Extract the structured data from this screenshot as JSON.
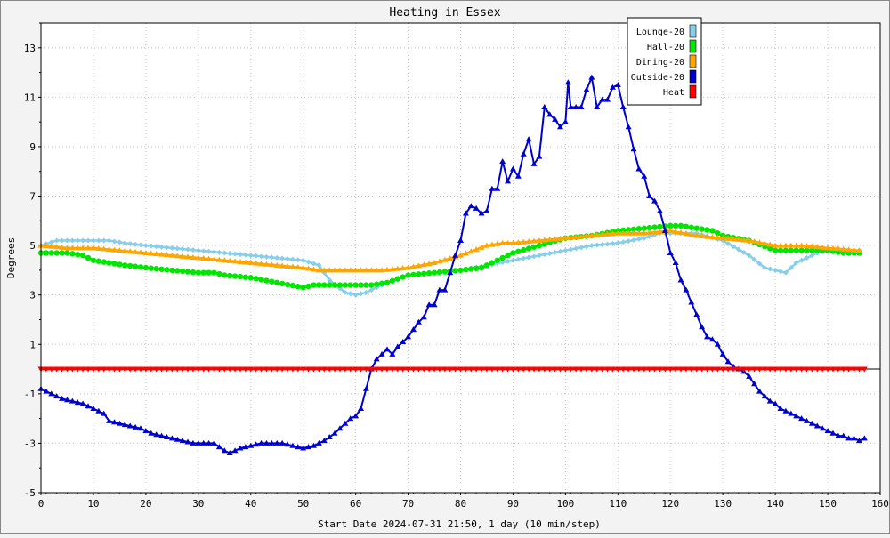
{
  "chart_data": {
    "type": "line",
    "title": "Heating in Essex",
    "xlabel": "Start Date 2024-07-31 21:50, 1 day (10 min/step)",
    "ylabel": "Degrees",
    "xlim": [
      0,
      160
    ],
    "ylim": [
      -5,
      14
    ],
    "x_ticks": [
      0,
      10,
      20,
      30,
      40,
      50,
      60,
      70,
      80,
      90,
      100,
      110,
      120,
      130,
      140,
      150,
      160
    ],
    "y_ticks": [
      -5,
      -3,
      -1,
      1,
      3,
      5,
      7,
      9,
      11,
      13
    ],
    "grid": true,
    "legend_position": "top-right",
    "series": [
      {
        "name": "Lounge-20",
        "color": "#87ceeb",
        "marker": "diamond",
        "points": [
          [
            0,
            5.0
          ],
          [
            3,
            5.2
          ],
          [
            6,
            5.2
          ],
          [
            10,
            5.2
          ],
          [
            13,
            5.2
          ],
          [
            16,
            5.1
          ],
          [
            20,
            5.0
          ],
          [
            25,
            4.9
          ],
          [
            30,
            4.8
          ],
          [
            35,
            4.7
          ],
          [
            40,
            4.6
          ],
          [
            45,
            4.5
          ],
          [
            50,
            4.4
          ],
          [
            53,
            4.2
          ],
          [
            55,
            3.6
          ],
          [
            58,
            3.1
          ],
          [
            60,
            3.0
          ],
          [
            62,
            3.1
          ],
          [
            65,
            3.4
          ],
          [
            70,
            3.8
          ],
          [
            75,
            3.9
          ],
          [
            80,
            4.0
          ],
          [
            85,
            4.2
          ],
          [
            90,
            4.4
          ],
          [
            95,
            4.6
          ],
          [
            100,
            4.8
          ],
          [
            105,
            5.0
          ],
          [
            110,
            5.1
          ],
          [
            115,
            5.3
          ],
          [
            118,
            5.5
          ],
          [
            120,
            5.5
          ],
          [
            125,
            5.5
          ],
          [
            130,
            5.2
          ],
          [
            135,
            4.6
          ],
          [
            138,
            4.1
          ],
          [
            140,
            4.0
          ],
          [
            142,
            3.9
          ],
          [
            144,
            4.3
          ],
          [
            146,
            4.5
          ],
          [
            148,
            4.7
          ],
          [
            150,
            4.8
          ],
          [
            152,
            4.8
          ],
          [
            154,
            4.8
          ],
          [
            156,
            4.8
          ]
        ]
      },
      {
        "name": "Hall-20",
        "color": "#00e600",
        "marker": "circle",
        "points": [
          [
            0,
            4.7
          ],
          [
            5,
            4.7
          ],
          [
            8,
            4.6
          ],
          [
            10,
            4.4
          ],
          [
            13,
            4.3
          ],
          [
            16,
            4.2
          ],
          [
            20,
            4.1
          ],
          [
            25,
            4.0
          ],
          [
            30,
            3.9
          ],
          [
            33,
            3.9
          ],
          [
            35,
            3.8
          ],
          [
            40,
            3.7
          ],
          [
            45,
            3.5
          ],
          [
            50,
            3.3
          ],
          [
            52,
            3.4
          ],
          [
            55,
            3.4
          ],
          [
            60,
            3.4
          ],
          [
            63,
            3.4
          ],
          [
            66,
            3.5
          ],
          [
            70,
            3.8
          ],
          [
            75,
            3.9
          ],
          [
            80,
            4.0
          ],
          [
            84,
            4.1
          ],
          [
            86,
            4.3
          ],
          [
            90,
            4.7
          ],
          [
            95,
            5.0
          ],
          [
            100,
            5.3
          ],
          [
            105,
            5.4
          ],
          [
            110,
            5.6
          ],
          [
            115,
            5.7
          ],
          [
            120,
            5.8
          ],
          [
            122,
            5.8
          ],
          [
            125,
            5.7
          ],
          [
            128,
            5.6
          ],
          [
            130,
            5.4
          ],
          [
            135,
            5.2
          ],
          [
            140,
            4.8
          ],
          [
            145,
            4.8
          ],
          [
            150,
            4.8
          ],
          [
            153,
            4.7
          ],
          [
            156,
            4.7
          ]
        ]
      },
      {
        "name": "Dining-20",
        "color": "#ffa500",
        "marker": "triangle",
        "points": [
          [
            0,
            5.0
          ],
          [
            5,
            4.9
          ],
          [
            10,
            4.9
          ],
          [
            15,
            4.8
          ],
          [
            20,
            4.7
          ],
          [
            25,
            4.6
          ],
          [
            30,
            4.5
          ],
          [
            35,
            4.4
          ],
          [
            40,
            4.3
          ],
          [
            45,
            4.2
          ],
          [
            50,
            4.1
          ],
          [
            53,
            4.0
          ],
          [
            55,
            4.0
          ],
          [
            60,
            4.0
          ],
          [
            65,
            4.0
          ],
          [
            70,
            4.1
          ],
          [
            75,
            4.3
          ],
          [
            80,
            4.6
          ],
          [
            85,
            5.0
          ],
          [
            88,
            5.1
          ],
          [
            90,
            5.1
          ],
          [
            95,
            5.2
          ],
          [
            100,
            5.3
          ],
          [
            105,
            5.4
          ],
          [
            110,
            5.5
          ],
          [
            115,
            5.5
          ],
          [
            120,
            5.6
          ],
          [
            125,
            5.4
          ],
          [
            130,
            5.3
          ],
          [
            135,
            5.2
          ],
          [
            140,
            5.0
          ],
          [
            145,
            5.0
          ],
          [
            150,
            4.9
          ],
          [
            156,
            4.8
          ]
        ]
      },
      {
        "name": "Outside-20",
        "color": "#0000cd",
        "marker": "triangle",
        "points": [
          [
            0,
            -0.8
          ],
          [
            2,
            -1.0
          ],
          [
            4,
            -1.2
          ],
          [
            6,
            -1.3
          ],
          [
            8,
            -1.4
          ],
          [
            10,
            -1.6
          ],
          [
            12,
            -1.8
          ],
          [
            13,
            -2.1
          ],
          [
            15,
            -2.2
          ],
          [
            17,
            -2.3
          ],
          [
            19,
            -2.4
          ],
          [
            21,
            -2.6
          ],
          [
            23,
            -2.7
          ],
          [
            25,
            -2.8
          ],
          [
            27,
            -2.9
          ],
          [
            29,
            -3.0
          ],
          [
            31,
            -3.0
          ],
          [
            33,
            -3.0
          ],
          [
            35,
            -3.3
          ],
          [
            36,
            -3.4
          ],
          [
            37,
            -3.3
          ],
          [
            38,
            -3.2
          ],
          [
            40,
            -3.1
          ],
          [
            42,
            -3.0
          ],
          [
            44,
            -3.0
          ],
          [
            46,
            -3.0
          ],
          [
            48,
            -3.1
          ],
          [
            50,
            -3.2
          ],
          [
            52,
            -3.1
          ],
          [
            54,
            -2.9
          ],
          [
            56,
            -2.6
          ],
          [
            58,
            -2.2
          ],
          [
            59,
            -2.0
          ],
          [
            60,
            -1.9
          ],
          [
            61,
            -1.6
          ],
          [
            62,
            -0.8
          ],
          [
            63,
            0.0
          ],
          [
            64,
            0.4
          ],
          [
            65,
            0.6
          ],
          [
            66,
            0.8
          ],
          [
            67,
            0.6
          ],
          [
            68,
            0.9
          ],
          [
            69,
            1.1
          ],
          [
            70,
            1.3
          ],
          [
            71,
            1.6
          ],
          [
            72,
            1.9
          ],
          [
            73,
            2.1
          ],
          [
            74,
            2.6
          ],
          [
            75,
            2.6
          ],
          [
            76,
            3.2
          ],
          [
            77,
            3.2
          ],
          [
            78,
            3.9
          ],
          [
            79,
            4.6
          ],
          [
            80,
            5.2
          ],
          [
            81,
            6.3
          ],
          [
            82,
            6.6
          ],
          [
            83,
            6.5
          ],
          [
            84,
            6.3
          ],
          [
            85,
            6.4
          ],
          [
            86,
            7.3
          ],
          [
            87,
            7.3
          ],
          [
            88,
            8.4
          ],
          [
            89,
            7.6
          ],
          [
            90,
            8.1
          ],
          [
            91,
            7.8
          ],
          [
            92,
            8.7
          ],
          [
            93,
            9.3
          ],
          [
            94,
            8.3
          ],
          [
            95,
            8.6
          ],
          [
            96,
            10.6
          ],
          [
            97,
            10.3
          ],
          [
            98,
            10.1
          ],
          [
            99,
            9.8
          ],
          [
            100,
            10.0
          ],
          [
            100.5,
            11.6
          ],
          [
            101,
            10.6
          ],
          [
            102,
            10.6
          ],
          [
            103,
            10.6
          ],
          [
            104,
            11.3
          ],
          [
            105,
            11.8
          ],
          [
            106,
            10.6
          ],
          [
            107,
            10.9
          ],
          [
            108,
            10.9
          ],
          [
            109,
            11.4
          ],
          [
            110,
            11.5
          ],
          [
            111,
            10.6
          ],
          [
            112,
            9.8
          ],
          [
            113,
            8.9
          ],
          [
            114,
            8.1
          ],
          [
            115,
            7.8
          ],
          [
            116,
            7.0
          ],
          [
            117,
            6.8
          ],
          [
            118,
            6.4
          ],
          [
            119,
            5.6
          ],
          [
            120,
            4.7
          ],
          [
            121,
            4.3
          ],
          [
            122,
            3.6
          ],
          [
            123,
            3.2
          ],
          [
            124,
            2.7
          ],
          [
            125,
            2.2
          ],
          [
            126,
            1.7
          ],
          [
            127,
            1.3
          ],
          [
            128,
            1.2
          ],
          [
            129,
            1.0
          ],
          [
            130,
            0.6
          ],
          [
            131,
            0.3
          ],
          [
            132,
            0.1
          ],
          [
            133,
            0.0
          ],
          [
            134,
            -0.1
          ],
          [
            135,
            -0.3
          ],
          [
            136,
            -0.6
          ],
          [
            137,
            -0.9
          ],
          [
            138,
            -1.1
          ],
          [
            139,
            -1.3
          ],
          [
            140,
            -1.4
          ],
          [
            141,
            -1.6
          ],
          [
            142,
            -1.7
          ],
          [
            143,
            -1.8
          ],
          [
            144,
            -1.9
          ],
          [
            145,
            -2.0
          ],
          [
            146,
            -2.1
          ],
          [
            147,
            -2.2
          ],
          [
            148,
            -2.3
          ],
          [
            149,
            -2.4
          ],
          [
            150,
            -2.5
          ],
          [
            151,
            -2.6
          ],
          [
            152,
            -2.7
          ],
          [
            153,
            -2.7
          ],
          [
            154,
            -2.8
          ],
          [
            155,
            -2.8
          ],
          [
            156,
            -2.9
          ],
          [
            157,
            -2.8
          ]
        ]
      },
      {
        "name": "Heat",
        "color": "#ff0000",
        "marker": "triangle-down",
        "points": [
          [
            0,
            0
          ],
          [
            157,
            0
          ]
        ]
      }
    ]
  }
}
